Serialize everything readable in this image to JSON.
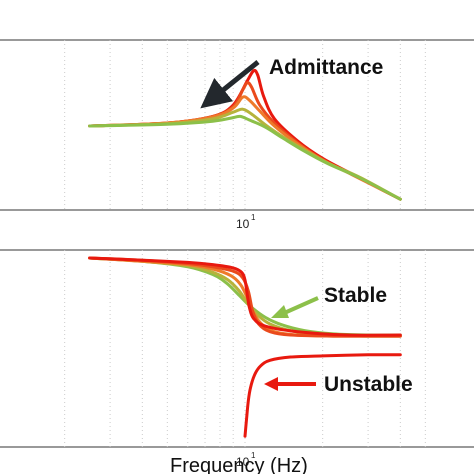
{
  "colors": {
    "red": "#e8190f",
    "orange_red": "#ea4a1c",
    "orange": "#ee7a2a",
    "yellow_green": "#b6b33b",
    "green": "#8cc04a",
    "arrow_dark": "#23282d",
    "arrow_green": "#8cc04a",
    "arrow_red": "#e8190f",
    "grid": "#cccccc"
  },
  "chart_data": [
    {
      "type": "line",
      "panel": "top",
      "x_scale": "log",
      "x_tick_label": {
        "base": "10",
        "exponent": "1"
      },
      "grid": "vertical dotted",
      "annotation": {
        "text": "Admittance"
      },
      "series": [
        {
          "color_key": "red",
          "x": [
            2.5,
            5,
            7.5,
            9.0,
            10.2,
            10.8,
            11.2,
            11.8,
            13,
            16,
            20,
            26,
            40
          ],
          "y": [
            1.0,
            1.05,
            1.16,
            1.35,
            1.75,
            1.92,
            1.85,
            1.5,
            1.12,
            0.75,
            0.46,
            0.2,
            -0.22
          ]
        },
        {
          "color_key": "orange_red",
          "x": [
            2.5,
            5,
            7.5,
            9.0,
            9.8,
            10.2,
            10.6,
            11.4,
            13,
            16,
            20,
            26,
            40
          ],
          "y": [
            1.0,
            1.05,
            1.16,
            1.32,
            1.6,
            1.72,
            1.65,
            1.35,
            1.05,
            0.72,
            0.44,
            0.19,
            -0.22
          ]
        },
        {
          "color_key": "orange",
          "x": [
            2.5,
            5,
            7.5,
            9.0,
            9.8,
            10.4,
            11.4,
            13,
            16,
            20,
            26,
            40
          ],
          "y": [
            1.0,
            1.05,
            1.15,
            1.3,
            1.48,
            1.43,
            1.25,
            1.0,
            0.7,
            0.43,
            0.19,
            -0.22
          ]
        },
        {
          "color_key": "yellow_green",
          "x": [
            2.5,
            5,
            7.5,
            9.0,
            9.8,
            10.6,
            12,
            14,
            17,
            21,
            28,
            40
          ],
          "y": [
            1.0,
            1.04,
            1.12,
            1.23,
            1.28,
            1.2,
            1.02,
            0.82,
            0.6,
            0.38,
            0.14,
            -0.22
          ]
        },
        {
          "color_key": "green",
          "x": [
            2.5,
            5,
            7.5,
            9.0,
            9.6,
            10.4,
            12,
            14,
            17,
            21,
            28,
            40
          ],
          "y": [
            1.0,
            1.03,
            1.08,
            1.14,
            1.16,
            1.1,
            0.98,
            0.8,
            0.58,
            0.37,
            0.13,
            -0.22
          ]
        }
      ]
    },
    {
      "type": "line",
      "panel": "bottom",
      "x_scale": "log",
      "x_tick_label": {
        "base": "10",
        "exponent": "1"
      },
      "xlabel": "Frequency (Hz)",
      "grid": "vertical dotted",
      "annotations": [
        {
          "text": "Stable",
          "color_key": "arrow_green"
        },
        {
          "text": "Unstable",
          "color_key": "arrow_red"
        }
      ],
      "series": [
        {
          "color_key": "green",
          "x": [
            2.5,
            4,
            6,
            7.5,
            8.5,
            9.5,
            10.5,
            12,
            14,
            17,
            22,
            30,
            40
          ],
          "y": [
            0.0,
            0.03,
            0.08,
            0.15,
            0.23,
            0.34,
            0.44,
            0.54,
            0.61,
            0.66,
            0.69,
            0.7,
            0.7
          ]
        },
        {
          "color_key": "yellow_green",
          "x": [
            2.5,
            4,
            6,
            7.5,
            8.6,
            9.5,
            10.3,
            11.2,
            12.5,
            15,
            20,
            30,
            40
          ],
          "y": [
            0.0,
            0.03,
            0.07,
            0.13,
            0.2,
            0.3,
            0.42,
            0.52,
            0.6,
            0.66,
            0.7,
            0.71,
            0.71
          ]
        },
        {
          "color_key": "orange",
          "x": [
            2.5,
            4,
            6,
            7.5,
            8.8,
            9.6,
            10.2,
            10.8,
            11.6,
            13,
            16,
            22,
            40
          ],
          "y": [
            0.0,
            0.03,
            0.06,
            0.1,
            0.16,
            0.24,
            0.36,
            0.5,
            0.6,
            0.67,
            0.7,
            0.71,
            0.71
          ]
        },
        {
          "color_key": "orange_red",
          "x": [
            2.5,
            4,
            6,
            7.5,
            9.0,
            9.8,
            10.3,
            10.7,
            11.3,
            12.5,
            15,
            22,
            40
          ],
          "y": [
            0.0,
            0.02,
            0.05,
            0.08,
            0.12,
            0.18,
            0.3,
            0.48,
            0.6,
            0.67,
            0.7,
            0.71,
            0.71
          ]
        },
        {
          "color_key": "red",
          "x": [
            2.5,
            4,
            6,
            7.5,
            9.0,
            9.7,
            10.0,
            10.2,
            10.4,
            10.8,
            12,
            16,
            25,
            40
          ],
          "y": [
            0.0,
            0.02,
            0.04,
            0.06,
            0.09,
            0.13,
            0.2,
            0.33,
            0.45,
            0.55,
            0.62,
            0.67,
            0.7,
            0.7
          ]
        },
        {
          "color_key": "red",
          "x": [
            10.0,
            10.15,
            10.3,
            10.5,
            10.9,
            11.5,
            12.5,
            15,
            20,
            30,
            40
          ],
          "y": [
            1.62,
            1.45,
            1.3,
            1.18,
            1.06,
            0.98,
            0.93,
            0.9,
            0.89,
            0.88,
            0.88
          ]
        }
      ]
    }
  ]
}
